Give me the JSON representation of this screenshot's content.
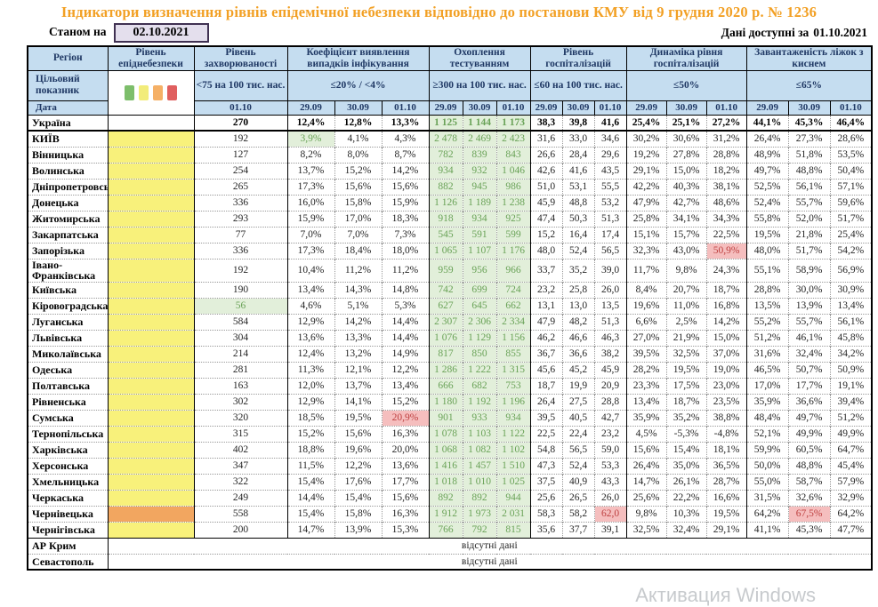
{
  "title": "Індикатори визначення рівнів епідемічної небезпеки відповідно до постанови КМУ від 9 грудня 2020 р. № 1236",
  "as_of": {
    "label": "Станом на",
    "date": "02.10.2021"
  },
  "available": {
    "label": "Дані доступні за",
    "date": "01.10.2021"
  },
  "no_data_text": "відсутні дані",
  "watermark": "Активация Windows",
  "legend_colors": [
    "#7DBE6B",
    "#F2EC7A",
    "#F5B066",
    "#E05F5F"
  ],
  "status_colors": {
    "yellow": "#F8F17B",
    "orange": "#F2A660",
    "green_bg": "#E2EFDA",
    "green_text": "#69A257",
    "red_bg": "#F5BEBE",
    "red_text": "#BE4040",
    "header_bg": "#C5DDF0",
    "title_text": "#F2A024",
    "asof_bg": "#E4DFED"
  },
  "header": {
    "region": "Регіон",
    "target_label": "Цільовий показник",
    "date_label": "Дата",
    "groups": [
      {
        "label": "Рівень епіднебезпеки"
      },
      {
        "label": "Рівень захворюваності",
        "target": "<75 на 100 тис. нас.",
        "dates": [
          "01.10"
        ]
      },
      {
        "label": "Коефіцієнт виявлення випадків інфікування",
        "target": "≤20% / <4%",
        "dates": [
          "29.09",
          "30.09",
          "01.10"
        ]
      },
      {
        "label": "Охоплення тестуванням",
        "target": "≥300 на 100 тис. нас.",
        "dates": [
          "29.09",
          "30.09",
          "01.10"
        ]
      },
      {
        "label": "Рівень госпіталізацій",
        "target": "≤60 на 100 тис. нас.",
        "dates": [
          "29.09",
          "30.09",
          "01.10"
        ]
      },
      {
        "label": "Динаміка рівня госпіталізацій",
        "target": "≤50%",
        "dates": [
          "29.09",
          "30.09",
          "01.10"
        ]
      },
      {
        "label": "Завантаженість ліжок з киснем",
        "target": "≤65%",
        "dates": [
          "29.09",
          "30.09",
          "01.10"
        ]
      }
    ]
  },
  "rows": [
    {
      "name": "Україна",
      "danger": null,
      "bold": true,
      "values": [
        "270",
        "12,4%",
        "12,8%",
        "13,3%",
        "1 125",
        "1 144",
        "1 173",
        "38,3",
        "39,8",
        "41,6",
        "25,4%",
        "25,1%",
        "27,2%",
        "44,1%",
        "45,3%",
        "46,4%"
      ]
    },
    {
      "name": "КИЇВ",
      "danger": "yellow",
      "values": [
        "192",
        "3,9%",
        "4,1%",
        "4,3%",
        "2 478",
        "2 469",
        "2 423",
        "31,6",
        "33,0",
        "34,6",
        "30,2%",
        "30,6%",
        "31,2%",
        "26,4%",
        "27,3%",
        "28,6%"
      ],
      "hl": {
        "1": "green"
      }
    },
    {
      "name": "Вінницька",
      "danger": "yellow",
      "values": [
        "127",
        "8,2%",
        "8,0%",
        "8,7%",
        "782",
        "839",
        "843",
        "26,6",
        "28,4",
        "29,6",
        "19,2%",
        "27,8%",
        "28,8%",
        "48,9%",
        "51,8%",
        "53,5%"
      ]
    },
    {
      "name": "Волинська",
      "danger": "yellow",
      "values": [
        "254",
        "13,7%",
        "15,2%",
        "14,2%",
        "934",
        "932",
        "1 046",
        "42,6",
        "41,6",
        "43,5",
        "29,1%",
        "15,0%",
        "18,2%",
        "49,7%",
        "48,8%",
        "50,4%"
      ]
    },
    {
      "name": "Дніпропетровська",
      "danger": "yellow",
      "values": [
        "265",
        "17,3%",
        "15,6%",
        "15,6%",
        "882",
        "945",
        "986",
        "51,0",
        "53,1",
        "55,5",
        "42,2%",
        "40,3%",
        "38,1%",
        "52,5%",
        "56,1%",
        "57,1%"
      ]
    },
    {
      "name": "Донецька",
      "danger": "yellow",
      "values": [
        "336",
        "16,0%",
        "15,8%",
        "15,9%",
        "1 126",
        "1 189",
        "1 238",
        "45,9",
        "48,8",
        "53,2",
        "47,9%",
        "42,7%",
        "48,6%",
        "52,4%",
        "55,7%",
        "59,6%"
      ]
    },
    {
      "name": "Житомирська",
      "danger": "yellow",
      "values": [
        "293",
        "15,9%",
        "17,0%",
        "18,3%",
        "918",
        "934",
        "925",
        "47,4",
        "50,3",
        "51,3",
        "25,8%",
        "34,1%",
        "34,3%",
        "55,8%",
        "52,0%",
        "51,7%"
      ]
    },
    {
      "name": "Закарпатська",
      "danger": "yellow",
      "values": [
        "77",
        "7,0%",
        "7,0%",
        "7,3%",
        "545",
        "591",
        "599",
        "15,2",
        "16,4",
        "17,4",
        "15,1%",
        "15,7%",
        "22,5%",
        "19,5%",
        "21,8%",
        "25,4%"
      ]
    },
    {
      "name": "Запорізька",
      "danger": "yellow",
      "values": [
        "336",
        "17,3%",
        "18,4%",
        "18,0%",
        "1 065",
        "1 107",
        "1 176",
        "48,0",
        "52,4",
        "56,5",
        "32,3%",
        "43,0%",
        "50,9%",
        "48,0%",
        "51,7%",
        "54,2%"
      ],
      "hl": {
        "12": "red"
      }
    },
    {
      "name": "Івано-Франківська",
      "danger": "yellow",
      "values": [
        "192",
        "10,4%",
        "11,2%",
        "11,2%",
        "959",
        "956",
        "966",
        "33,7",
        "35,2",
        "39,0",
        "11,7%",
        "9,8%",
        "24,3%",
        "55,1%",
        "58,9%",
        "56,9%"
      ]
    },
    {
      "name": "Київська",
      "danger": "yellow",
      "values": [
        "190",
        "13,4%",
        "14,3%",
        "14,8%",
        "742",
        "699",
        "724",
        "23,2",
        "25,8",
        "26,0",
        "8,4%",
        "20,7%",
        "18,7%",
        "28,8%",
        "30,0%",
        "30,9%"
      ]
    },
    {
      "name": "Кіровоградська",
      "danger": "yellow",
      "values": [
        "56",
        "4,6%",
        "5,1%",
        "5,3%",
        "627",
        "645",
        "662",
        "13,1",
        "13,0",
        "13,5",
        "19,6%",
        "11,0%",
        "16,8%",
        "13,5%",
        "13,9%",
        "13,4%"
      ],
      "hl": {
        "0": "green"
      }
    },
    {
      "name": "Луганська",
      "danger": "yellow",
      "values": [
        "584",
        "12,9%",
        "14,2%",
        "14,4%",
        "2 307",
        "2 306",
        "2 334",
        "47,9",
        "48,2",
        "51,3",
        "6,6%",
        "2,5%",
        "14,2%",
        "55,2%",
        "55,7%",
        "56,1%"
      ]
    },
    {
      "name": "Львівська",
      "danger": "yellow",
      "values": [
        "304",
        "13,6%",
        "13,3%",
        "14,4%",
        "1 076",
        "1 129",
        "1 156",
        "46,2",
        "46,6",
        "46,3",
        "27,0%",
        "21,9%",
        "15,0%",
        "51,2%",
        "46,1%",
        "45,8%"
      ]
    },
    {
      "name": "Миколаївська",
      "danger": "yellow",
      "values": [
        "214",
        "12,4%",
        "13,2%",
        "14,9%",
        "817",
        "850",
        "855",
        "36,7",
        "36,6",
        "38,2",
        "39,5%",
        "32,5%",
        "37,0%",
        "31,6%",
        "32,4%",
        "34,2%"
      ]
    },
    {
      "name": "Одеська",
      "danger": "yellow",
      "values": [
        "281",
        "11,3%",
        "12,1%",
        "12,2%",
        "1 286",
        "1 222",
        "1 315",
        "45,6",
        "45,2",
        "45,9",
        "28,2%",
        "19,5%",
        "19,0%",
        "46,5%",
        "50,7%",
        "50,9%"
      ]
    },
    {
      "name": "Полтавська",
      "danger": "yellow",
      "values": [
        "163",
        "12,0%",
        "13,7%",
        "13,4%",
        "666",
        "682",
        "753",
        "18,7",
        "19,9",
        "20,9",
        "23,3%",
        "17,5%",
        "23,0%",
        "17,0%",
        "17,7%",
        "19,1%"
      ]
    },
    {
      "name": "Рівненська",
      "danger": "yellow",
      "values": [
        "302",
        "12,9%",
        "14,1%",
        "15,2%",
        "1 180",
        "1 192",
        "1 196",
        "26,4",
        "27,5",
        "28,8",
        "13,4%",
        "18,7%",
        "23,5%",
        "35,9%",
        "36,6%",
        "39,4%"
      ]
    },
    {
      "name": "Сумська",
      "danger": "yellow",
      "values": [
        "320",
        "18,5%",
        "19,5%",
        "20,9%",
        "901",
        "933",
        "934",
        "39,5",
        "40,5",
        "42,7",
        "35,9%",
        "35,2%",
        "38,8%",
        "48,4%",
        "49,7%",
        "51,2%"
      ],
      "hl": {
        "3": "red"
      }
    },
    {
      "name": "Тернопільська",
      "danger": "yellow",
      "values": [
        "315",
        "15,2%",
        "15,6%",
        "16,3%",
        "1 078",
        "1 103",
        "1 122",
        "22,5",
        "22,4",
        "23,2",
        "4,5%",
        "-5,3%",
        "-4,8%",
        "52,1%",
        "49,9%",
        "49,9%"
      ]
    },
    {
      "name": "Харківська",
      "danger": "yellow",
      "values": [
        "402",
        "18,8%",
        "19,6%",
        "20,0%",
        "1 068",
        "1 082",
        "1 102",
        "54,8",
        "56,5",
        "59,0",
        "15,6%",
        "15,4%",
        "18,1%",
        "59,9%",
        "60,5%",
        "64,7%"
      ]
    },
    {
      "name": "Херсонська",
      "danger": "yellow",
      "values": [
        "347",
        "11,5%",
        "12,2%",
        "13,6%",
        "1 416",
        "1 457",
        "1 510",
        "47,3",
        "52,4",
        "53,3",
        "26,4%",
        "35,0%",
        "36,5%",
        "50,0%",
        "48,8%",
        "45,4%"
      ]
    },
    {
      "name": "Хмельницька",
      "danger": "yellow",
      "values": [
        "322",
        "15,4%",
        "17,6%",
        "17,7%",
        "1 018",
        "1 010",
        "1 025",
        "37,5",
        "40,9",
        "43,3",
        "14,7%",
        "26,1%",
        "28,7%",
        "55,0%",
        "58,7%",
        "57,9%"
      ]
    },
    {
      "name": "Черкаська",
      "danger": "yellow",
      "values": [
        "249",
        "14,4%",
        "15,4%",
        "15,6%",
        "892",
        "892",
        "944",
        "25,6",
        "26,5",
        "26,0",
        "25,6%",
        "22,2%",
        "16,6%",
        "31,5%",
        "32,6%",
        "32,9%"
      ]
    },
    {
      "name": "Чернівецька",
      "danger": "orange",
      "values": [
        "558",
        "15,4%",
        "15,8%",
        "16,3%",
        "1 912",
        "1 973",
        "2 031",
        "58,3",
        "58,2",
        "62,0",
        "9,8%",
        "10,3%",
        "19,5%",
        "64,2%",
        "67,5%",
        "64,2%"
      ],
      "hl": {
        "9": "red",
        "14": "red"
      }
    },
    {
      "name": "Чернігівська",
      "danger": "yellow",
      "values": [
        "200",
        "14,7%",
        "13,9%",
        "15,3%",
        "766",
        "792",
        "815",
        "35,6",
        "37,7",
        "39,1",
        "32,5%",
        "32,4%",
        "29,1%",
        "41,1%",
        "45,3%",
        "47,7%"
      ]
    },
    {
      "name": "АР Крим",
      "no_data": true,
      "solid_top": true
    },
    {
      "name": "Севастополь",
      "no_data": true
    }
  ]
}
